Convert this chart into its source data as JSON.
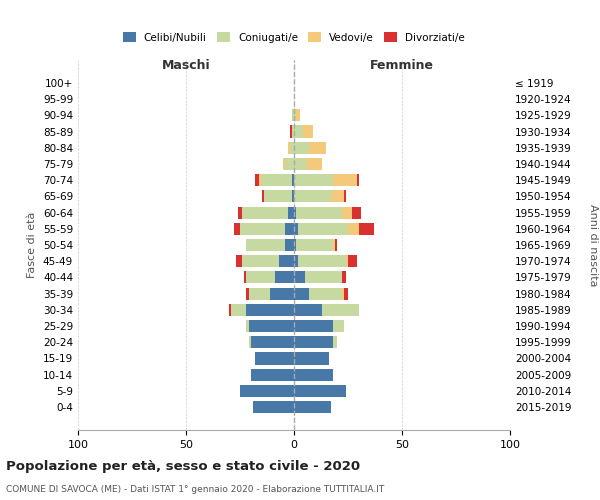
{
  "age_groups": [
    "0-4",
    "5-9",
    "10-14",
    "15-19",
    "20-24",
    "25-29",
    "30-34",
    "35-39",
    "40-44",
    "45-49",
    "50-54",
    "55-59",
    "60-64",
    "65-69",
    "70-74",
    "75-79",
    "80-84",
    "85-89",
    "90-94",
    "95-99",
    "100+"
  ],
  "birth_years": [
    "2015-2019",
    "2010-2014",
    "2005-2009",
    "2000-2004",
    "1995-1999",
    "1990-1994",
    "1985-1989",
    "1980-1984",
    "1975-1979",
    "1970-1974",
    "1965-1969",
    "1960-1964",
    "1955-1959",
    "1950-1954",
    "1945-1949",
    "1940-1944",
    "1935-1939",
    "1930-1934",
    "1925-1929",
    "1920-1924",
    "≤ 1919"
  ],
  "colors": {
    "celibe": "#4878a8",
    "coniugato": "#c5d9a0",
    "vedovo": "#f5c97a",
    "divorziato": "#d93030"
  },
  "male": {
    "celibe": [
      19,
      25,
      20,
      18,
      20,
      21,
      22,
      11,
      9,
      7,
      4,
      4,
      3,
      1,
      1,
      0,
      0,
      0,
      0,
      0,
      0
    ],
    "coniugato": [
      0,
      0,
      0,
      0,
      1,
      1,
      7,
      10,
      13,
      17,
      18,
      21,
      21,
      13,
      14,
      4,
      2,
      1,
      1,
      0,
      0
    ],
    "vedovo": [
      0,
      0,
      0,
      0,
      0,
      0,
      0,
      0,
      0,
      0,
      0,
      0,
      0,
      0,
      1,
      1,
      1,
      0,
      0,
      0,
      0
    ],
    "divorziato": [
      0,
      0,
      0,
      0,
      0,
      0,
      1,
      1,
      1,
      3,
      0,
      3,
      2,
      1,
      2,
      0,
      0,
      1,
      0,
      0,
      0
    ]
  },
  "female": {
    "nubile": [
      17,
      24,
      18,
      16,
      18,
      18,
      13,
      7,
      5,
      2,
      1,
      2,
      1,
      0,
      0,
      0,
      0,
      0,
      0,
      0,
      0
    ],
    "coniugata": [
      0,
      0,
      0,
      0,
      2,
      5,
      17,
      15,
      17,
      22,
      17,
      23,
      21,
      17,
      18,
      6,
      7,
      4,
      1,
      0,
      0
    ],
    "vedova": [
      0,
      0,
      0,
      0,
      0,
      0,
      0,
      1,
      0,
      1,
      1,
      5,
      5,
      6,
      11,
      7,
      8,
      5,
      2,
      0,
      0
    ],
    "divorziata": [
      0,
      0,
      0,
      0,
      0,
      0,
      0,
      2,
      2,
      4,
      1,
      7,
      4,
      1,
      1,
      0,
      0,
      0,
      0,
      0,
      0
    ]
  },
  "xlim": 100,
  "title": "Popolazione per età, sesso e stato civile - 2020",
  "subtitle": "COMUNE DI SAVOCA (ME) - Dati ISTAT 1° gennaio 2020 - Elaborazione TUTTITALIA.IT",
  "ylabel_left": "Fasce di età",
  "ylabel_right": "Anni di nascita",
  "xlabel_left": "Maschi",
  "xlabel_right": "Femmine",
  "background_color": "#ffffff",
  "grid_color": "#cccccc"
}
